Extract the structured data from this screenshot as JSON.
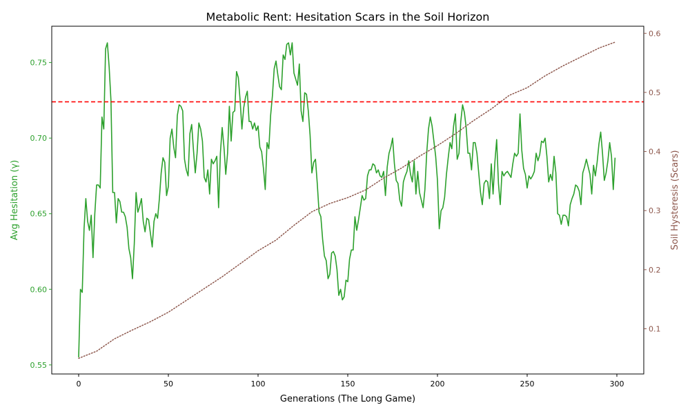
{
  "chart_data": {
    "type": "line",
    "title": "Metabolic Rent: Hesitation Scars in the Soil Horizon",
    "xlabel": "Generations (The Long Game)",
    "ylabel_left": "Avg Hesitation (γ)",
    "ylabel_right": "Soil Hysteresis (Scars)",
    "xlim": [
      -15,
      315
    ],
    "ylim_left": [
      0.544,
      0.774
    ],
    "ylim_right": [
      0.0235,
      0.612
    ],
    "x_ticks": [
      0,
      50,
      100,
      150,
      200,
      250,
      300
    ],
    "y_ticks_left": [
      "0.55",
      "0.60",
      "0.65",
      "0.70",
      "0.75"
    ],
    "y_ticks_right": [
      "0.1",
      "0.2",
      "0.3",
      "0.4",
      "0.5",
      "0.6"
    ],
    "colors": {
      "hesitation": "#2ca02c",
      "scars": "#8c564b",
      "threshold": "#ff0000"
    },
    "threshold": {
      "axis": "left",
      "value": 0.724,
      "style": "dashed"
    },
    "series": [
      {
        "name": "Avg Hesitation",
        "axis": "left",
        "style": "solid",
        "x_start": 0,
        "values": [
          0.555,
          0.6,
          0.598,
          0.64,
          0.66,
          0.645,
          0.639,
          0.649,
          0.621,
          0.65,
          0.669,
          0.669,
          0.667,
          0.714,
          0.706,
          0.759,
          0.763,
          0.747,
          0.725,
          0.664,
          0.664,
          0.644,
          0.66,
          0.658,
          0.651,
          0.651,
          0.648,
          0.641,
          0.627,
          0.621,
          0.607,
          0.63,
          0.664,
          0.651,
          0.655,
          0.66,
          0.645,
          0.638,
          0.647,
          0.646,
          0.637,
          0.628,
          0.645,
          0.65,
          0.647,
          0.66,
          0.677,
          0.687,
          0.684,
          0.662,
          0.668,
          0.7,
          0.706,
          0.694,
          0.687,
          0.715,
          0.722,
          0.721,
          0.718,
          0.686,
          0.679,
          0.675,
          0.703,
          0.709,
          0.692,
          0.677,
          0.69,
          0.71,
          0.706,
          0.698,
          0.674,
          0.671,
          0.679,
          0.663,
          0.686,
          0.683,
          0.685,
          0.688,
          0.654,
          0.69,
          0.707,
          0.694,
          0.676,
          0.69,
          0.721,
          0.698,
          0.717,
          0.718,
          0.744,
          0.74,
          0.725,
          0.706,
          0.72,
          0.727,
          0.731,
          0.711,
          0.711,
          0.706,
          0.71,
          0.705,
          0.708,
          0.694,
          0.691,
          0.68,
          0.666,
          0.697,
          0.693,
          0.715,
          0.728,
          0.746,
          0.751,
          0.742,
          0.734,
          0.732,
          0.755,
          0.752,
          0.762,
          0.763,
          0.755,
          0.763,
          0.743,
          0.739,
          0.735,
          0.749,
          0.718,
          0.711,
          0.73,
          0.729,
          0.718,
          0.702,
          0.677,
          0.684,
          0.686,
          0.67,
          0.651,
          0.648,
          0.633,
          0.622,
          0.619,
          0.607,
          0.61,
          0.624,
          0.625,
          0.622,
          0.613,
          0.596,
          0.6,
          0.593,
          0.595,
          0.606,
          0.605,
          0.62,
          0.626,
          0.626,
          0.648,
          0.639,
          0.646,
          0.654,
          0.662,
          0.659,
          0.66,
          0.675,
          0.679,
          0.679,
          0.683,
          0.682,
          0.677,
          0.679,
          0.675,
          0.674,
          0.678,
          0.662,
          0.681,
          0.69,
          0.694,
          0.7,
          0.683,
          0.672,
          0.67,
          0.659,
          0.655,
          0.671,
          0.675,
          0.678,
          0.685,
          0.676,
          0.671,
          0.685,
          0.663,
          0.678,
          0.664,
          0.659,
          0.654,
          0.666,
          0.69,
          0.706,
          0.714,
          0.708,
          0.698,
          0.688,
          0.672,
          0.64,
          0.652,
          0.654,
          0.661,
          0.676,
          0.687,
          0.697,
          0.693,
          0.708,
          0.716,
          0.686,
          0.69,
          0.711,
          0.722,
          0.717,
          0.707,
          0.69,
          0.69,
          0.679,
          0.697,
          0.697,
          0.69,
          0.677,
          0.664,
          0.656,
          0.67,
          0.672,
          0.671,
          0.66,
          0.683,
          0.663,
          0.684,
          0.699,
          0.67,
          0.656,
          0.678,
          0.675,
          0.677,
          0.678,
          0.676,
          0.674,
          0.683,
          0.69,
          0.688,
          0.69,
          0.716,
          0.692,
          0.68,
          0.676,
          0.667,
          0.675,
          0.673,
          0.675,
          0.678,
          0.69,
          0.685,
          0.689,
          0.698,
          0.697,
          0.7,
          0.688,
          0.671,
          0.676,
          0.672,
          0.688,
          0.677,
          0.65,
          0.649,
          0.643,
          0.649,
          0.649,
          0.648,
          0.642,
          0.656,
          0.66,
          0.663,
          0.669,
          0.668,
          0.665,
          0.656,
          0.677,
          0.681,
          0.686,
          0.681,
          0.676,
          0.663,
          0.682,
          0.675,
          0.684,
          0.696,
          0.704,
          0.69,
          0.672,
          0.677,
          0.685,
          0.697,
          0.688,
          0.666,
          0.687
        ]
      },
      {
        "name": "Soil Hysteresis",
        "axis": "right",
        "style": "dotted",
        "x": [
          0,
          10,
          20,
          30,
          40,
          50,
          60,
          70,
          80,
          90,
          100,
          110,
          120,
          130,
          140,
          150,
          160,
          170,
          180,
          190,
          200,
          210,
          220,
          230,
          240,
          250,
          260,
          270,
          280,
          290,
          299
        ],
        "values": [
          0.05,
          0.062,
          0.083,
          0.098,
          0.112,
          0.128,
          0.148,
          0.168,
          0.188,
          0.21,
          0.232,
          0.25,
          0.275,
          0.298,
          0.312,
          0.322,
          0.335,
          0.355,
          0.372,
          0.392,
          0.41,
          0.43,
          0.452,
          0.472,
          0.495,
          0.508,
          0.528,
          0.545,
          0.56,
          0.575,
          0.585
        ]
      }
    ]
  }
}
